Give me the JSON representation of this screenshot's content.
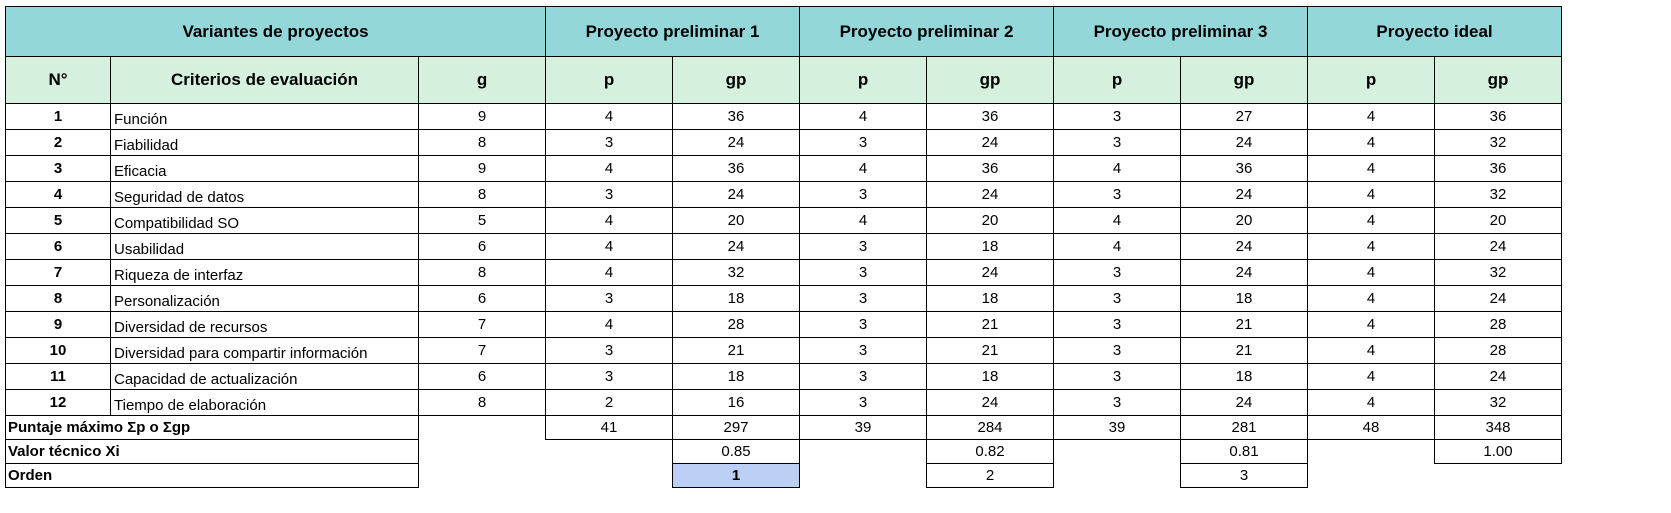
{
  "header": {
    "variants": "Variantes de proyectos",
    "proj1": "Proyecto preliminar 1",
    "proj2": "Proyecto preliminar 2",
    "proj3": "Proyecto preliminar 3",
    "ideal": "Proyecto ideal"
  },
  "subheader": {
    "n": "N°",
    "criteria": "Criterios de evaluación",
    "g": "g",
    "p": "p",
    "gp": "gp"
  },
  "rows": [
    {
      "n": "1",
      "criterio": "Función",
      "g": "9",
      "p1": "4",
      "gp1": "36",
      "p2": "4",
      "gp2": "36",
      "p3": "3",
      "gp3": "27",
      "pi": "4",
      "gpi": "36"
    },
    {
      "n": "2",
      "criterio": "Fiabilidad",
      "g": "8",
      "p1": "3",
      "gp1": "24",
      "p2": "3",
      "gp2": "24",
      "p3": "3",
      "gp3": "24",
      "pi": "4",
      "gpi": "32"
    },
    {
      "n": "3",
      "criterio": "Eficacia",
      "g": "9",
      "p1": "4",
      "gp1": "36",
      "p2": "4",
      "gp2": "36",
      "p3": "4",
      "gp3": "36",
      "pi": "4",
      "gpi": "36"
    },
    {
      "n": "4",
      "criterio": "Seguridad de datos",
      "g": "8",
      "p1": "3",
      "gp1": "24",
      "p2": "3",
      "gp2": "24",
      "p3": "3",
      "gp3": "24",
      "pi": "4",
      "gpi": "32"
    },
    {
      "n": "5",
      "criterio": "Compatibilidad SO",
      "g": "5",
      "p1": "4",
      "gp1": "20",
      "p2": "4",
      "gp2": "20",
      "p3": "4",
      "gp3": "20",
      "pi": "4",
      "gpi": "20"
    },
    {
      "n": "6",
      "criterio": "Usabilidad",
      "g": "6",
      "p1": "4",
      "gp1": "24",
      "p2": "3",
      "gp2": "18",
      "p3": "4",
      "gp3": "24",
      "pi": "4",
      "gpi": "24"
    },
    {
      "n": "7",
      "criterio": "Riqueza de interfaz",
      "g": "8",
      "p1": "4",
      "gp1": "32",
      "p2": "3",
      "gp2": "24",
      "p3": "3",
      "gp3": "24",
      "pi": "4",
      "gpi": "32"
    },
    {
      "n": "8",
      "criterio": "Personalización",
      "g": "6",
      "p1": "3",
      "gp1": "18",
      "p2": "3",
      "gp2": "18",
      "p3": "3",
      "gp3": "18",
      "pi": "4",
      "gpi": "24"
    },
    {
      "n": "9",
      "criterio": "Diversidad de recursos",
      "g": "7",
      "p1": "4",
      "gp1": "28",
      "p2": "3",
      "gp2": "21",
      "p3": "3",
      "gp3": "21",
      "pi": "4",
      "gpi": "28"
    },
    {
      "n": "10",
      "criterio": "Diversidad para compartir información",
      "g": "7",
      "p1": "3",
      "gp1": "21",
      "p2": "3",
      "gp2": "21",
      "p3": "3",
      "gp3": "21",
      "pi": "4",
      "gpi": "28"
    },
    {
      "n": "11",
      "criterio": "Capacidad de actualización",
      "g": "6",
      "p1": "3",
      "gp1": "18",
      "p2": "3",
      "gp2": "18",
      "p3": "3",
      "gp3": "18",
      "pi": "4",
      "gpi": "24"
    },
    {
      "n": "12",
      "criterio": "Tiempo de elaboración",
      "g": "8",
      "p1": "2",
      "gp1": "16",
      "p2": "3",
      "gp2": "24",
      "p3": "3",
      "gp3": "24",
      "pi": "4",
      "gpi": "32"
    }
  ],
  "summary": {
    "max_label": "Puntaje máximo Σp o Σgp",
    "max": {
      "p1": "41",
      "gp1": "297",
      "p2": "39",
      "gp2": "284",
      "p3": "39",
      "gp3": "281",
      "pi": "48",
      "gpi": "348"
    },
    "xi_label": "Valor técnico Xi",
    "xi": {
      "p1": "0.85",
      "p2": "0.82",
      "p3": "0.81",
      "pi": "1.00"
    },
    "order_label": "Orden",
    "order": {
      "p1": "1",
      "p2": "2",
      "p3": "3"
    }
  },
  "colors": {
    "header_bg": "#93d7da",
    "subheader_bg": "#d5f0dd",
    "highlight_bg": "#bcd0f5"
  }
}
